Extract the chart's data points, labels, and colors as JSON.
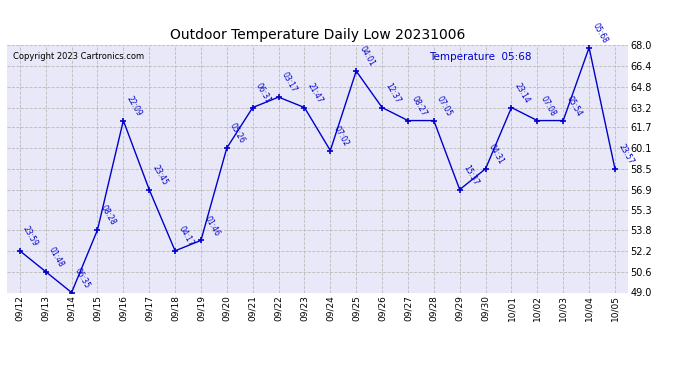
{
  "title": "Outdoor Temperature Daily Low 20231006",
  "legend_label": "Temperature  05:68",
  "copyright": "Copyright 2023 Cartronics.com",
  "background_color": "#ffffff",
  "plot_background": "#e8e8f8",
  "line_color": "#0000cc",
  "text_color": "#0000cc",
  "annotation_color": "#0000cc",
  "ylim": [
    49.0,
    68.0
  ],
  "yticks": [
    49.0,
    50.6,
    52.2,
    53.8,
    55.3,
    56.9,
    58.5,
    60.1,
    61.7,
    63.2,
    64.8,
    66.4,
    68.0
  ],
  "dates": [
    "09/12",
    "09/13",
    "09/14",
    "09/15",
    "09/16",
    "09/17",
    "09/18",
    "09/19",
    "09/20",
    "09/21",
    "09/22",
    "09/23",
    "09/24",
    "09/25",
    "09/26",
    "09/27",
    "09/28",
    "09/29",
    "09/30",
    "10/01",
    "10/02",
    "10/03",
    "10/04",
    "10/05"
  ],
  "values": [
    52.2,
    50.6,
    49.0,
    53.8,
    62.2,
    56.9,
    52.2,
    53.0,
    60.1,
    63.2,
    64.0,
    63.2,
    59.9,
    66.0,
    63.2,
    62.2,
    62.2,
    56.9,
    58.5,
    63.2,
    62.2,
    62.2,
    67.8,
    58.5
  ],
  "annotations": [
    "23:59",
    "01:48",
    "06:35",
    "08:28",
    "22:09",
    "23:45",
    "04:17",
    "01:46",
    "05:26",
    "06:31",
    "03:17",
    "21:47",
    "07:02",
    "04:01",
    "12:37",
    "08:27",
    "07:05",
    "15:37",
    "04:31",
    "23:14",
    "07:08",
    "05:54",
    "05:68",
    "23:57"
  ]
}
